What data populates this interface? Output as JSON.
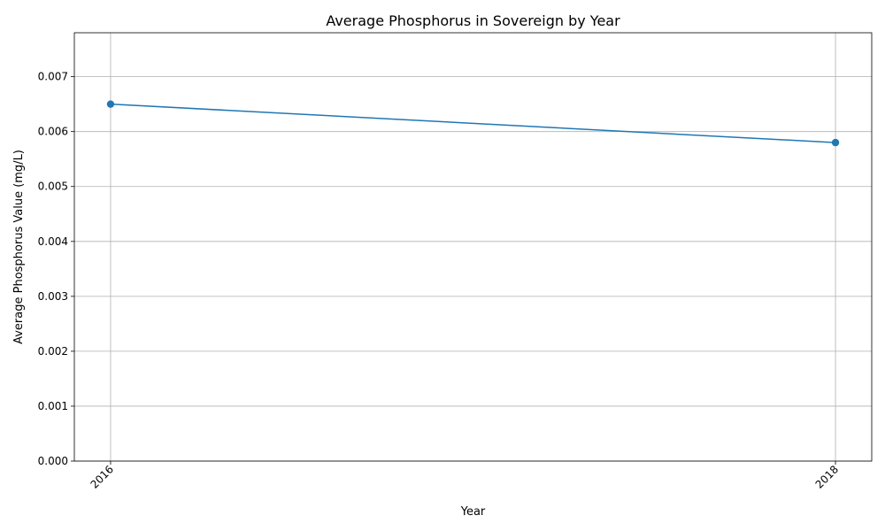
{
  "chart_data": {
    "type": "line",
    "title": "Average Phosphorus in Sovereign by Year",
    "xlabel": "Year",
    "ylabel": "Average Phosphorus Value (mg/L)",
    "x": [
      2016,
      2018
    ],
    "x_tick_labels": [
      "2016",
      "2018"
    ],
    "xlim": [
      2015.9,
      2018.1
    ],
    "series": [
      {
        "values": [
          0.0065,
          0.0058
        ],
        "color": "#1f77b4",
        "marker": "circle"
      }
    ],
    "ylim": [
      0,
      0.0078
    ],
    "y_ticks": [
      0,
      0.001,
      0.002,
      0.003,
      0.004,
      0.005,
      0.006,
      0.007
    ],
    "y_tick_labels": [
      "0.000",
      "0.001",
      "0.002",
      "0.003",
      "0.004",
      "0.005",
      "0.006",
      "0.007"
    ],
    "grid": true,
    "legend": "none"
  }
}
